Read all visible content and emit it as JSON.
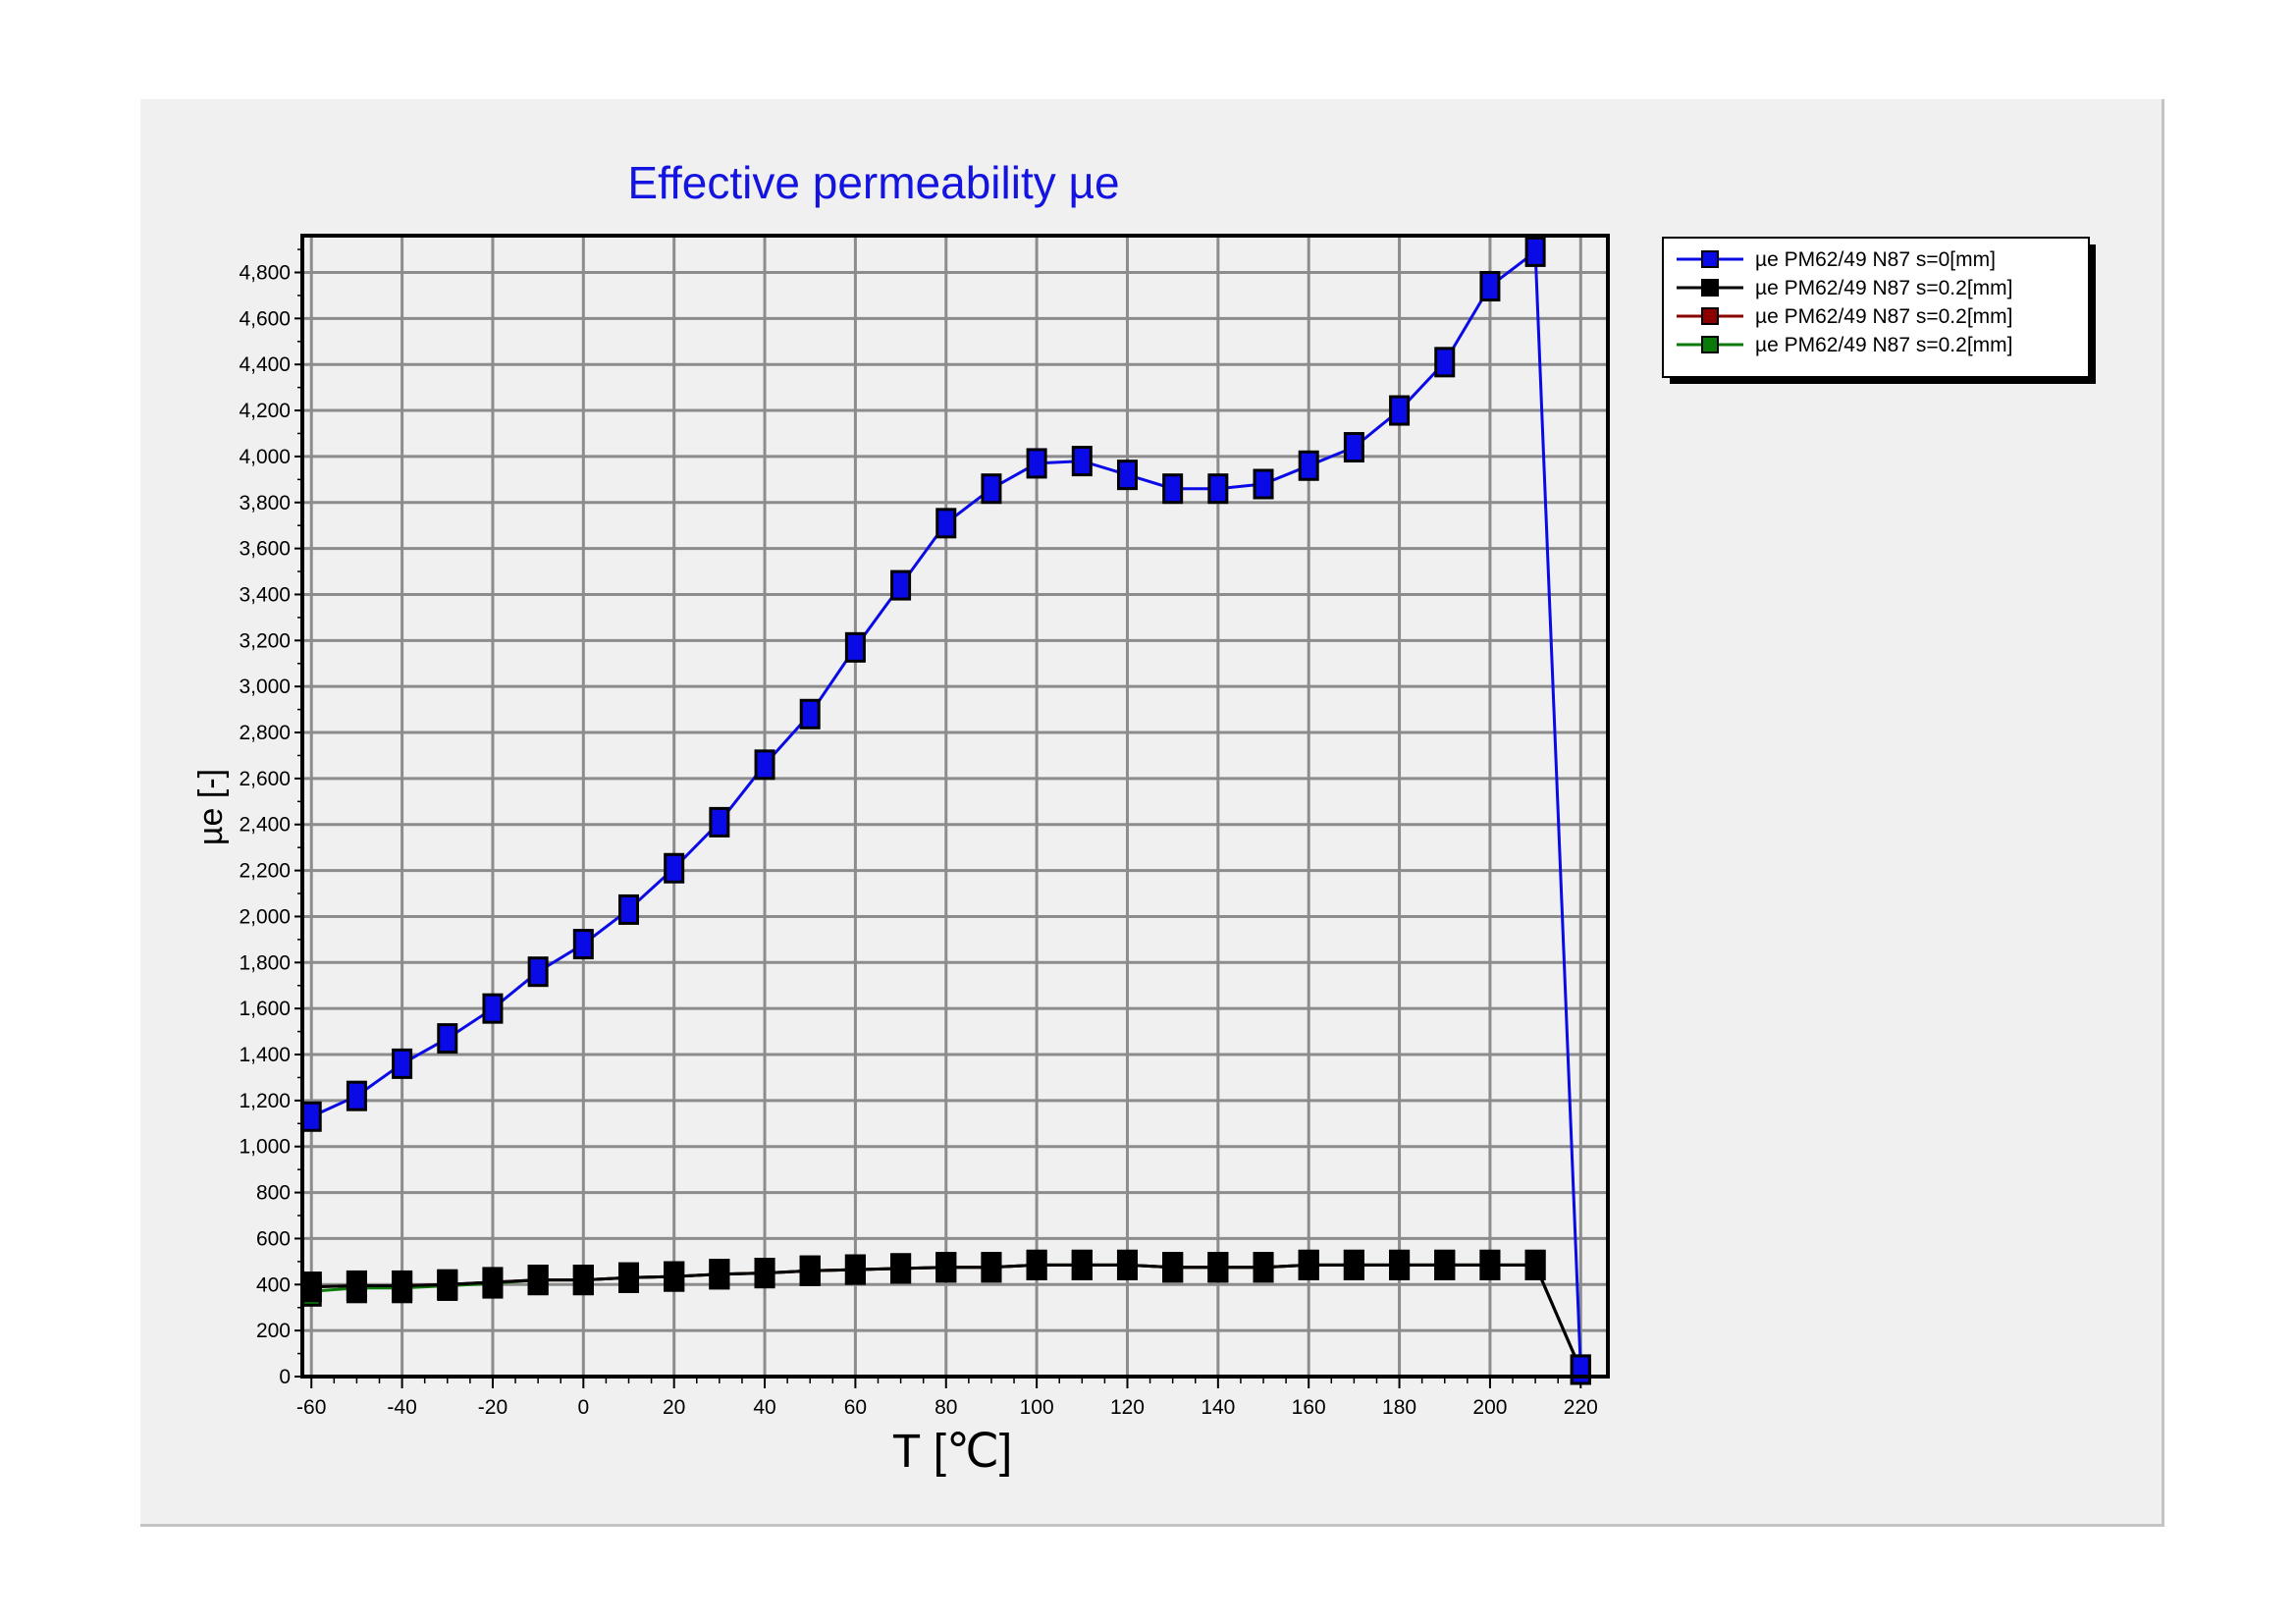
{
  "chart_data": {
    "type": "line",
    "title": "Effective permeability µe",
    "xlabel": "T [℃]",
    "ylabel": "µe [-]",
    "xlim": [
      -62,
      226
    ],
    "ylim": [
      0,
      4960
    ],
    "x_ticks": [
      -60,
      -40,
      -20,
      0,
      20,
      40,
      60,
      80,
      100,
      120,
      140,
      160,
      180,
      200,
      220
    ],
    "y_ticks": [
      0,
      200,
      400,
      600,
      800,
      1000,
      1200,
      1400,
      1600,
      1800,
      2000,
      2200,
      2400,
      2600,
      2800,
      3000,
      3200,
      3400,
      3600,
      3800,
      4000,
      4200,
      4400,
      4600,
      4800
    ],
    "y_tick_labels": [
      "0",
      "200",
      "400",
      "600",
      "800",
      "1,000",
      "1,200",
      "1,400",
      "1,600",
      "1,800",
      "2,000",
      "2,200",
      "2,400",
      "2,600",
      "2,800",
      "3,000",
      "3,200",
      "3,400",
      "3,600",
      "3,800",
      "4,000",
      "4,200",
      "4,400",
      "4,600",
      "4,800"
    ],
    "grid": true,
    "legend_position": "right",
    "x": [
      -60,
      -50,
      -40,
      -30,
      -20,
      -10,
      0,
      10,
      20,
      30,
      40,
      50,
      60,
      70,
      80,
      90,
      100,
      110,
      120,
      130,
      140,
      150,
      160,
      170,
      180,
      190,
      200,
      210,
      220
    ],
    "series": [
      {
        "name": "µe PM62/49 N87 s=0[mm]",
        "color": "#0a0ae6",
        "values": [
          1130,
          1220,
          1360,
          1470,
          1600,
          1760,
          1880,
          2030,
          2210,
          2410,
          2660,
          2880,
          3170,
          3440,
          3710,
          3860,
          3970,
          3980,
          3920,
          3860,
          3860,
          3880,
          3960,
          4040,
          4200,
          4410,
          4740,
          4890,
          30
        ]
      },
      {
        "name": "µe PM62/49 N87 s=0.2[mm]",
        "color": "#000000",
        "values": [
          390,
          395,
          395,
          400,
          410,
          420,
          420,
          430,
          435,
          445,
          450,
          460,
          465,
          470,
          475,
          475,
          485,
          485,
          485,
          475,
          475,
          475,
          485,
          485,
          485,
          485,
          485,
          485,
          30
        ]
      },
      {
        "name": "µe PM62/49 N87 s=0.2[mm]",
        "color": "#8b0000",
        "values": [
          390,
          395,
          395,
          400,
          410,
          420,
          420,
          430,
          435,
          445,
          450,
          460,
          465,
          470,
          475,
          475,
          485,
          485,
          485,
          475,
          475,
          475,
          485,
          485,
          485,
          485,
          485,
          485,
          30
        ]
      },
      {
        "name": "µe PM62/49 N87 s=0.2[mm]",
        "color": "#0a7a0a",
        "values": [
          370,
          385,
          385,
          395,
          405,
          420,
          420,
          430,
          435,
          445,
          450,
          460,
          465,
          470,
          475,
          475,
          485,
          485,
          485,
          475,
          475,
          475,
          485,
          485,
          485,
          485,
          485,
          485,
          30
        ]
      }
    ]
  }
}
